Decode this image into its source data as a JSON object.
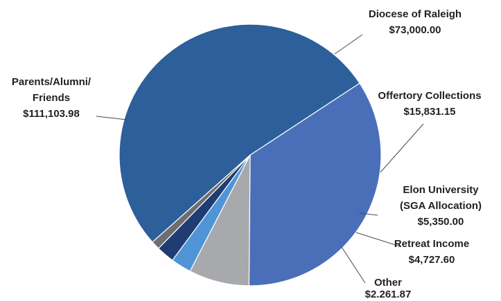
{
  "chart_data": {
    "type": "pie",
    "slices": [
      {
        "label_lines": [
          "Diocese of Raleigh",
          "$73,000.00"
        ],
        "value": 73000.0,
        "color": "#4a6fb8"
      },
      {
        "label_lines": [
          "Offertory Collections",
          "$15,831.15"
        ],
        "value": 15831.15,
        "color": "#a7a9ac"
      },
      {
        "label_lines": [
          "Elon University",
          "(SGA Allocation)",
          "$5,350.00"
        ],
        "value": 5350.0,
        "color": "#4f95d6"
      },
      {
        "label_lines": [
          "Retreat Income",
          "$4,727.60"
        ],
        "value": 4727.6,
        "color": "#1f3d73"
      },
      {
        "label_lines": [
          "Other",
          "$2.261.87"
        ],
        "value": 2261.87,
        "color": "#6d6e71"
      },
      {
        "label_lines": [
          "Parents/Alumni/",
          "Friends",
          "$111,103.98"
        ],
        "value": 111103.98,
        "color": "#2d5f9a"
      }
    ]
  }
}
